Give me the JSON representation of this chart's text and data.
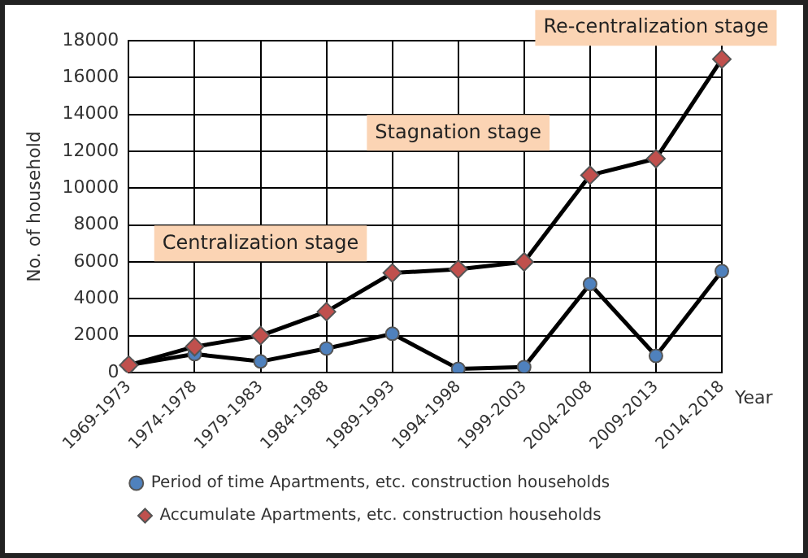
{
  "chart_data": {
    "type": "line",
    "xlabel": "Year",
    "ylabel": "No. of household",
    "categories": [
      "1969-1973",
      "1974-1978",
      "1979-1983",
      "1984-1988",
      "1989-1993",
      "1994-1998",
      "1999-2003",
      "2004-2008",
      "2009-2013",
      "2014-2018"
    ],
    "series": [
      {
        "name": "Period of time Apartments, etc. construction households",
        "color": "#4f81bd",
        "marker": "circle",
        "values": [
          400,
          1000,
          600,
          1300,
          2100,
          200,
          300,
          4800,
          900,
          5500
        ]
      },
      {
        "name": "Accumulate Apartments, etc. construction households",
        "color": "#c0504d",
        "marker": "diamond",
        "values": [
          400,
          1400,
          2000,
          3300,
          5400,
          5600,
          6000,
          10700,
          11600,
          17000
        ]
      }
    ],
    "ylim": [
      0,
      18000
    ],
    "yticks": [
      0,
      2000,
      4000,
      6000,
      8000,
      10000,
      12000,
      14000,
      16000,
      18000
    ],
    "grid": true,
    "legend": "bottom",
    "line_style": "solid",
    "annotations": [
      "Centralization stage",
      "Stagnation stage",
      "Re-centralization stage"
    ]
  }
}
